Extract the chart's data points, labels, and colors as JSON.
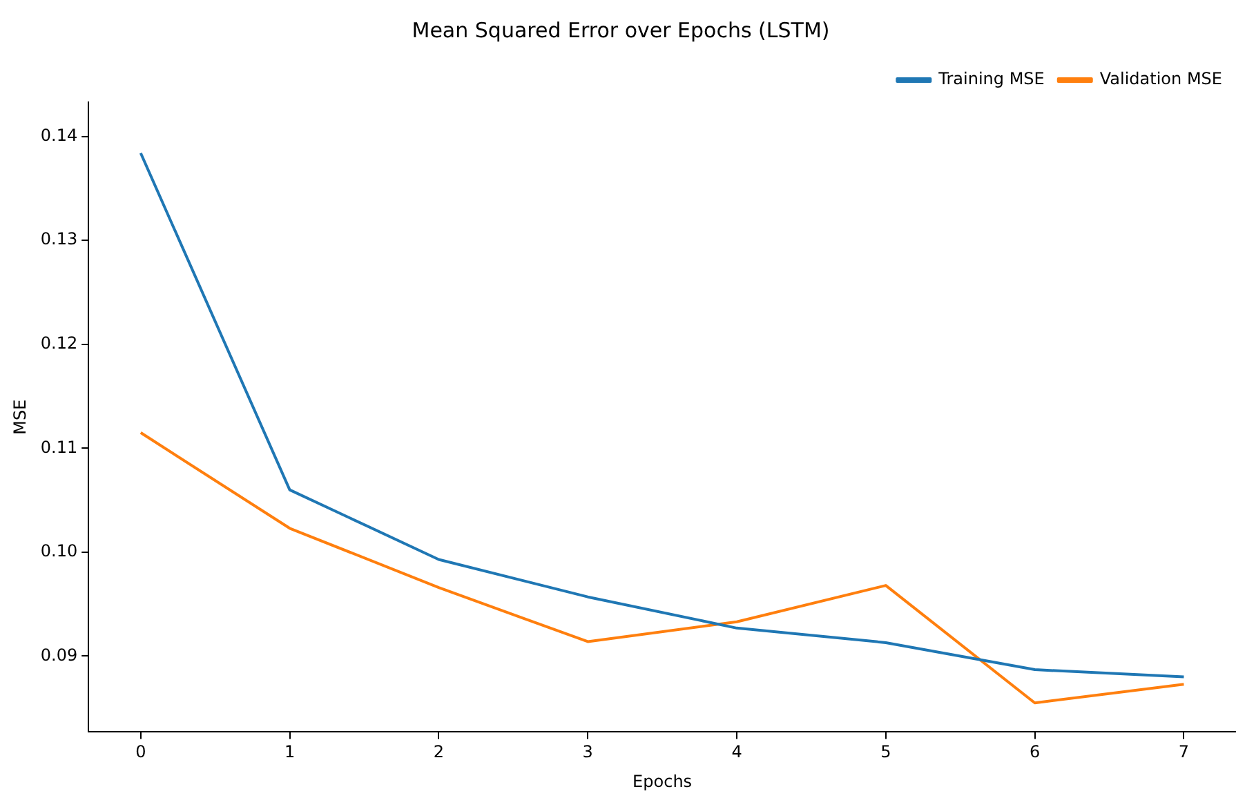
{
  "chart_data": {
    "type": "line",
    "title": "Mean Squared Error over Epochs (LSTM)",
    "xlabel": "Epochs",
    "ylabel": "MSE",
    "x": [
      0,
      1,
      2,
      3,
      4,
      5,
      6,
      7
    ],
    "series": [
      {
        "name": "Training MSE",
        "color": "#1f77b4",
        "values": [
          0.1384,
          0.106,
          0.0993,
          0.0957,
          0.0927,
          0.0913,
          0.0887,
          0.088
        ]
      },
      {
        "name": "Validation MSE",
        "color": "#ff7f0e",
        "values": [
          0.1115,
          0.1023,
          0.0966,
          0.0914,
          0.0933,
          0.0968,
          0.0855,
          0.0873
        ]
      }
    ],
    "xlim": [
      -0.35,
      7.35
    ],
    "xticks": [
      0,
      1,
      2,
      3,
      4,
      5,
      6,
      7
    ],
    "ylim": [
      0.0827,
      0.1433
    ],
    "yticks": [
      {
        "value": 0.09,
        "label": "0.09"
      },
      {
        "value": 0.1,
        "label": "0.10"
      },
      {
        "value": 0.11,
        "label": "0.11"
      },
      {
        "value": 0.12,
        "label": "0.12"
      },
      {
        "value": 0.13,
        "label": "0.13"
      },
      {
        "value": 0.14,
        "label": "0.14"
      }
    ],
    "grid": false,
    "legend": "top right",
    "marker": "none",
    "line_style": "solid"
  }
}
